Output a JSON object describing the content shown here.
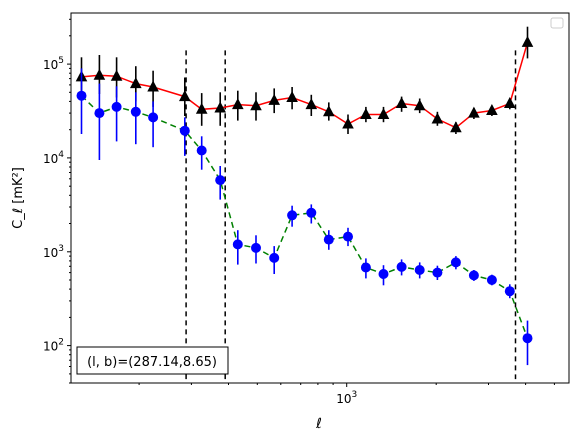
{
  "chart_data": {
    "type": "scatter",
    "title": "",
    "xlabel": "ℓ",
    "ylabel": "C_ℓ  [mK²]",
    "xscale": "log",
    "yscale": "log",
    "xlim": [
      118,
      5600
    ],
    "ylim": [
      40,
      350000
    ],
    "grid": false,
    "legend": "top-right",
    "legend_entries": [],
    "annotation": "(l, b)=(287.14,8.65)",
    "x_ticks": [
      {
        "value": 1000,
        "label": "10^3"
      }
    ],
    "y_ticks": [
      {
        "value": 100,
        "label": "10^2"
      },
      {
        "value": 1000,
        "label": "10^3"
      },
      {
        "value": 10000,
        "label": "10^4"
      },
      {
        "value": 100000,
        "label": "10^5"
      }
    ],
    "vlines": [
      288,
      390,
      3700
    ],
    "series": [
      {
        "marker": "triangle",
        "marker_color": "#000000",
        "line_color": "#ff0000",
        "line_style": "solid",
        "points": [
          {
            "x": 128,
            "y": 73000,
            "lo": 48000,
            "hi": 118000
          },
          {
            "x": 147,
            "y": 76000,
            "lo": 48000,
            "hi": 125000
          },
          {
            "x": 168,
            "y": 74000,
            "lo": 44000,
            "hi": 118000
          },
          {
            "x": 195,
            "y": 62000,
            "lo": 40000,
            "hi": 95000
          },
          {
            "x": 223,
            "y": 57000,
            "lo": 35000,
            "hi": 85000
          },
          {
            "x": 285,
            "y": 45000,
            "lo": 28000,
            "hi": 72000
          },
          {
            "x": 325,
            "y": 33000,
            "lo": 22000,
            "hi": 49000
          },
          {
            "x": 375,
            "y": 34000,
            "lo": 22000,
            "hi": 50000
          },
          {
            "x": 430,
            "y": 37000,
            "lo": 25000,
            "hi": 52000
          },
          {
            "x": 495,
            "y": 36000,
            "lo": 25000,
            "hi": 50000
          },
          {
            "x": 570,
            "y": 41000,
            "lo": 30000,
            "hi": 55000
          },
          {
            "x": 655,
            "y": 44000,
            "lo": 33000,
            "hi": 57000
          },
          {
            "x": 760,
            "y": 37000,
            "lo": 28000,
            "hi": 47000
          },
          {
            "x": 870,
            "y": 31000,
            "lo": 25000,
            "hi": 39000
          },
          {
            "x": 1010,
            "y": 23000,
            "lo": 18000,
            "hi": 29000
          },
          {
            "x": 1160,
            "y": 29000,
            "lo": 24000,
            "hi": 35000
          },
          {
            "x": 1330,
            "y": 29000,
            "lo": 24000,
            "hi": 35000
          },
          {
            "x": 1530,
            "y": 38000,
            "lo": 31000,
            "hi": 45000
          },
          {
            "x": 1760,
            "y": 36000,
            "lo": 30000,
            "hi": 43000
          },
          {
            "x": 2020,
            "y": 26000,
            "lo": 22000,
            "hi": 31000
          },
          {
            "x": 2330,
            "y": 21000,
            "lo": 18000,
            "hi": 24000
          },
          {
            "x": 2680,
            "y": 30000,
            "lo": 26000,
            "hi": 34000
          },
          {
            "x": 3080,
            "y": 32000,
            "lo": 28000,
            "hi": 36000
          },
          {
            "x": 3540,
            "y": 38000,
            "lo": 33000,
            "hi": 43000
          },
          {
            "x": 4060,
            "y": 170000,
            "lo": 115000,
            "hi": 250000
          }
        ]
      },
      {
        "marker": "circle",
        "marker_color": "#0000ff",
        "line_color": "#008000",
        "line_style": "dashed",
        "points": [
          {
            "x": 128,
            "y": 46000,
            "lo": 18000,
            "hi": 90000
          },
          {
            "x": 147,
            "y": 30000,
            "lo": 9500,
            "hi": 62000
          },
          {
            "x": 168,
            "y": 35000,
            "lo": 15000,
            "hi": 58000
          },
          {
            "x": 195,
            "y": 31000,
            "lo": 14000,
            "hi": 50000
          },
          {
            "x": 223,
            "y": 27000,
            "lo": 13000,
            "hi": 40000
          },
          {
            "x": 285,
            "y": 19500,
            "lo": 10500,
            "hi": 27000
          },
          {
            "x": 325,
            "y": 12000,
            "lo": 7500,
            "hi": 17000
          },
          {
            "x": 375,
            "y": 5800,
            "lo": 3600,
            "hi": 8200
          },
          {
            "x": 430,
            "y": 1200,
            "lo": 730,
            "hi": 1700
          },
          {
            "x": 495,
            "y": 1100,
            "lo": 750,
            "hi": 1500
          },
          {
            "x": 570,
            "y": 860,
            "lo": 580,
            "hi": 1150
          },
          {
            "x": 655,
            "y": 2450,
            "lo": 1850,
            "hi": 3100
          },
          {
            "x": 760,
            "y": 2600,
            "lo": 2000,
            "hi": 3200
          },
          {
            "x": 870,
            "y": 1350,
            "lo": 1050,
            "hi": 1700
          },
          {
            "x": 1010,
            "y": 1450,
            "lo": 1150,
            "hi": 1800
          },
          {
            "x": 1160,
            "y": 680,
            "lo": 520,
            "hi": 850
          },
          {
            "x": 1330,
            "y": 580,
            "lo": 440,
            "hi": 720
          },
          {
            "x": 1530,
            "y": 690,
            "lo": 560,
            "hi": 830
          },
          {
            "x": 1760,
            "y": 640,
            "lo": 520,
            "hi": 770
          },
          {
            "x": 2020,
            "y": 600,
            "lo": 500,
            "hi": 710
          },
          {
            "x": 2330,
            "y": 770,
            "lo": 650,
            "hi": 900
          },
          {
            "x": 2680,
            "y": 560,
            "lo": 490,
            "hi": 640
          },
          {
            "x": 3080,
            "y": 500,
            "lo": 440,
            "hi": 570
          },
          {
            "x": 3540,
            "y": 380,
            "lo": 320,
            "hi": 450
          },
          {
            "x": 4060,
            "y": 120,
            "lo": 62,
            "hi": 185
          }
        ]
      }
    ]
  }
}
